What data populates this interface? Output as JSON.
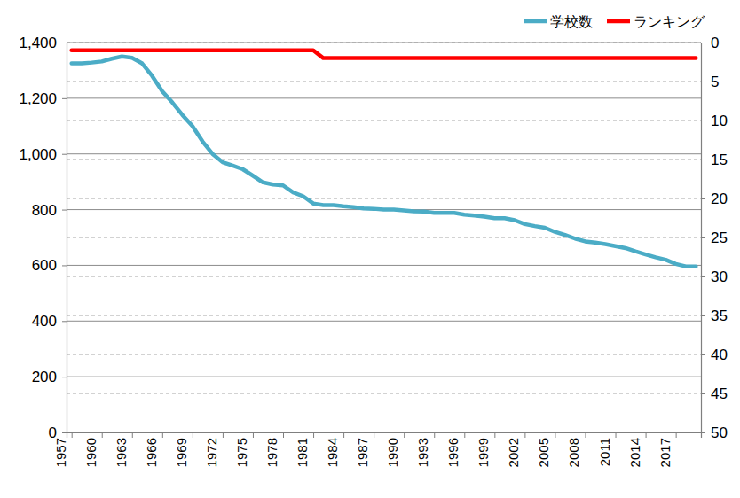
{
  "chart_data": {
    "type": "line",
    "x": [
      1957,
      1958,
      1959,
      1960,
      1961,
      1962,
      1963,
      1964,
      1965,
      1966,
      1967,
      1968,
      1969,
      1970,
      1971,
      1972,
      1973,
      1974,
      1975,
      1976,
      1977,
      1978,
      1979,
      1980,
      1981,
      1982,
      1983,
      1984,
      1985,
      1986,
      1987,
      1988,
      1989,
      1990,
      1991,
      1992,
      1993,
      1994,
      1995,
      1996,
      1997,
      1998,
      1999,
      2000,
      2001,
      2002,
      2003,
      2004,
      2005,
      2006,
      2007,
      2008,
      2009,
      2010,
      2011,
      2012,
      2013,
      2014,
      2015,
      2016,
      2017,
      2018,
      2019
    ],
    "series": [
      {
        "name": "学校数",
        "color": "#4bacc6",
        "values": [
          1325,
          1325,
          1328,
          1332,
          1342,
          1350,
          1345,
          1325,
          1280,
          1225,
          1185,
          1140,
          1100,
          1045,
          1000,
          970,
          958,
          945,
          922,
          898,
          890,
          887,
          862,
          848,
          822,
          816,
          816,
          812,
          809,
          804,
          803,
          800,
          800,
          797,
          794,
          793,
          788,
          788,
          788,
          782,
          779,
          775,
          769,
          769,
          762,
          748,
          741,
          735,
          720,
          709,
          696,
          686,
          682,
          676,
          669,
          662,
          650,
          639,
          629,
          620,
          605,
          596,
          596
        ]
      },
      {
        "name": "ランキング",
        "color": "#ff0000",
        "axis": "y2",
        "values": [
          1,
          1,
          1,
          1,
          1,
          1,
          1,
          1,
          1,
          1,
          1,
          1,
          1,
          1,
          1,
          1,
          1,
          1,
          1,
          1,
          1,
          1,
          1,
          1,
          1,
          2,
          2,
          2,
          2,
          2,
          2,
          2,
          2,
          2,
          2,
          2,
          2,
          2,
          2,
          2,
          2,
          2,
          2,
          2,
          2,
          2,
          2,
          2,
          2,
          2,
          2,
          2,
          2,
          2,
          2,
          2,
          2,
          2,
          2,
          2,
          2,
          2,
          2
        ]
      }
    ],
    "xlim": [
      1956.5,
      2019.5
    ],
    "xticks": [
      1957,
      1960,
      1963,
      1966,
      1969,
      1972,
      1975,
      1978,
      1981,
      1984,
      1987,
      1990,
      1993,
      1996,
      1999,
      2002,
      2005,
      2008,
      2011,
      2014,
      2017
    ],
    "ylim": [
      0,
      1400
    ],
    "yticks": [
      0,
      200,
      400,
      600,
      800,
      {
        "value": 1000,
        "label": "1,000"
      },
      {
        "value": 1200,
        "label": "1,200"
      },
      {
        "value": 1400,
        "label": "1,400"
      }
    ],
    "y2lim": [
      50,
      0
    ],
    "y2ticks": [
      0,
      5,
      10,
      15,
      20,
      25,
      30,
      35,
      40,
      45,
      50
    ],
    "grid": true,
    "legend": "top-right"
  }
}
